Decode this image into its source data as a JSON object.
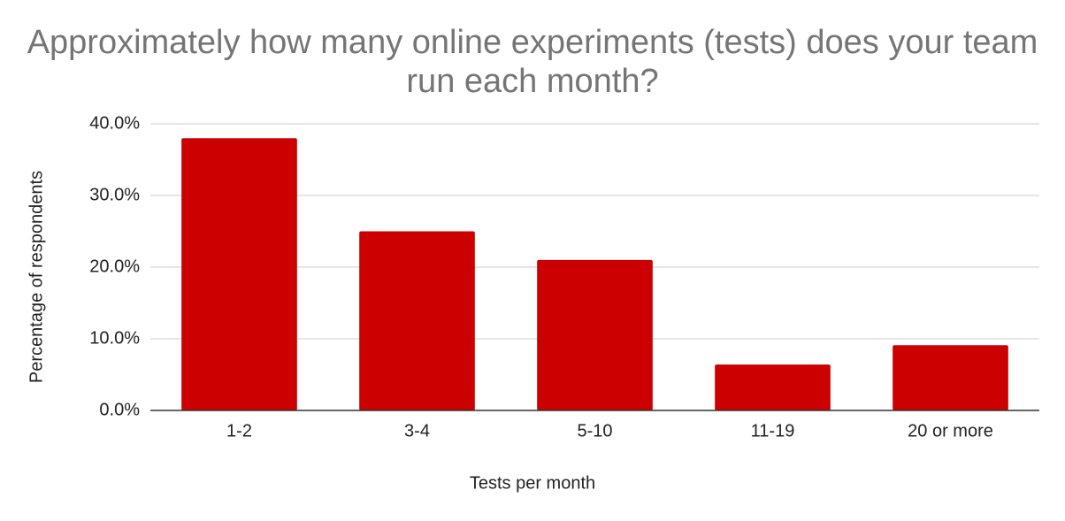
{
  "chart_data": {
    "type": "bar",
    "title": "Approximately how many online experiments (tests) does your team run each month?",
    "x_label": "Tests per month",
    "y_label": "Percentage of respondents",
    "categories": [
      "1-2",
      "3-4",
      "5-10",
      "11-19",
      "20 or more"
    ],
    "values": [
      38,
      25,
      21,
      6.4,
      9.1
    ],
    "color": "#cc0000",
    "ylim": [
      0,
      40
    ],
    "yticks": [
      {
        "value": 0,
        "label": "0.0%"
      },
      {
        "value": 10,
        "label": "10.0%"
      },
      {
        "value": 20,
        "label": "20.0%"
      },
      {
        "value": 30,
        "label": "30.0%"
      },
      {
        "value": 40,
        "label": "40.0%"
      }
    ],
    "grid": true
  }
}
